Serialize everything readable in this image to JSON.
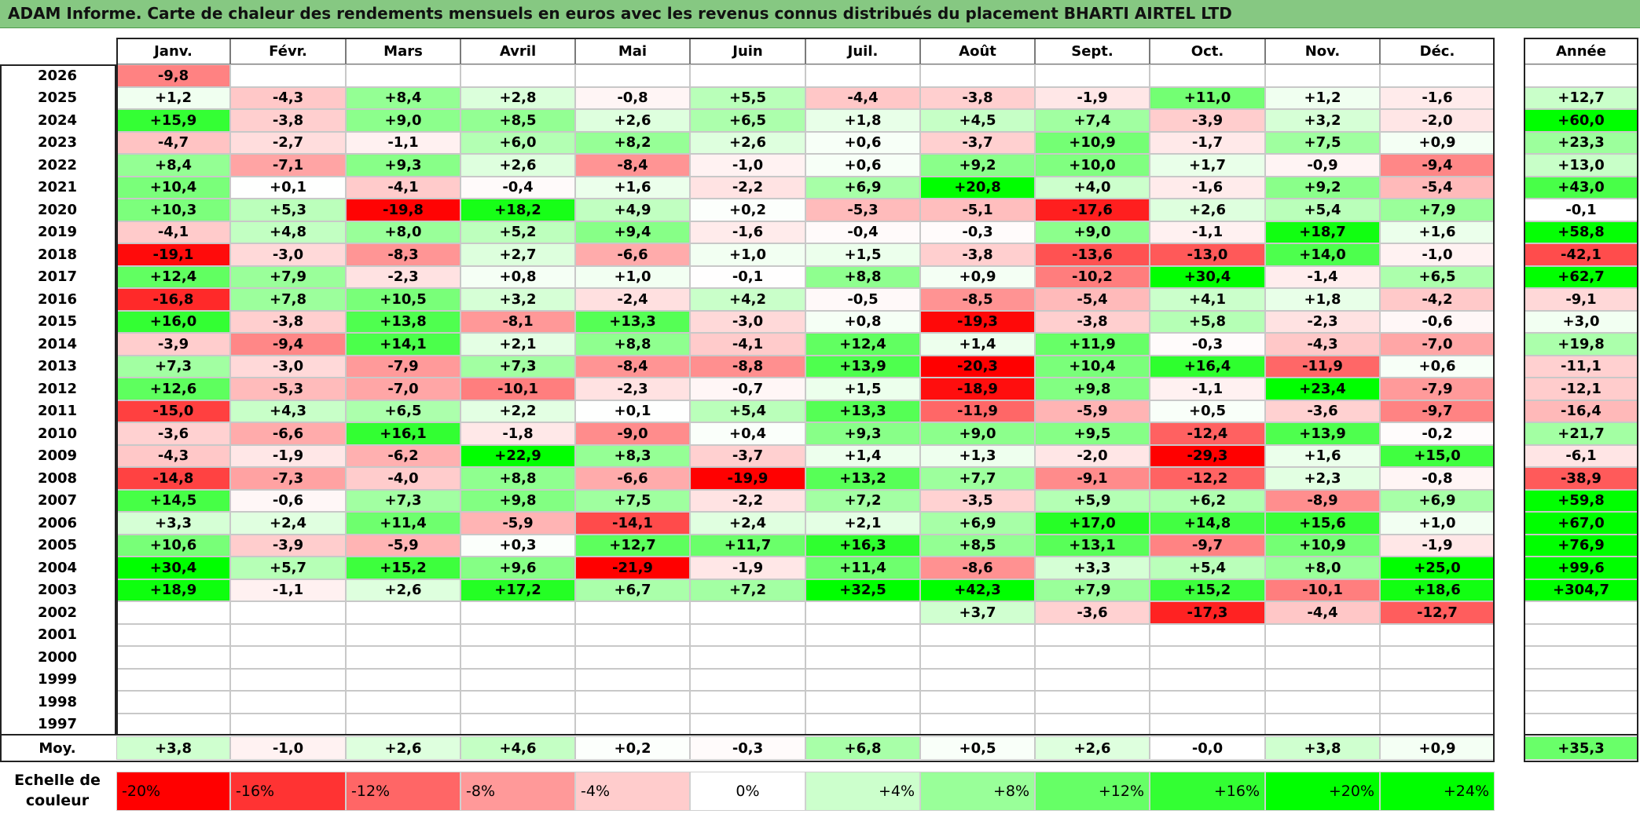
{
  "title": "ADAM Informe. Carte de chaleur des rendements mensuels en euros avec les revenus connus distribués du placement BHARTI AIRTEL LTD",
  "chart_data": {
    "type": "heatmap",
    "months": [
      "Janv.",
      "Févr.",
      "Mars",
      "Avril",
      "Mai",
      "Juin",
      "Juil.",
      "Août",
      "Sept.",
      "Oct.",
      "Nov.",
      "Déc."
    ],
    "year_header": "Année",
    "rows": [
      {
        "year": "2026",
        "months": [
          "-9,8",
          "",
          "",
          "",
          "",
          "",
          "",
          "",
          "",
          "",
          "",
          ""
        ],
        "annual": ""
      },
      {
        "year": "2025",
        "months": [
          "+1,2",
          "-4,3",
          "+8,4",
          "+2,8",
          "-0,8",
          "+5,5",
          "-4,4",
          "-3,8",
          "-1,9",
          "+11,0",
          "+1,2",
          "-1,6"
        ],
        "annual": "+12,7"
      },
      {
        "year": "2024",
        "months": [
          "+15,9",
          "-3,8",
          "+9,0",
          "+8,5",
          "+2,6",
          "+6,5",
          "+1,8",
          "+4,5",
          "+7,4",
          "-3,9",
          "+3,2",
          "-2,0"
        ],
        "annual": "+60,0"
      },
      {
        "year": "2023",
        "months": [
          "-4,7",
          "-2,7",
          "-1,1",
          "+6,0",
          "+8,2",
          "+2,6",
          "+0,6",
          "-3,7",
          "+10,9",
          "-1,7",
          "+7,5",
          "+0,9"
        ],
        "annual": "+23,3"
      },
      {
        "year": "2022",
        "months": [
          "+8,4",
          "-7,1",
          "+9,3",
          "+2,6",
          "-8,4",
          "-1,0",
          "+0,6",
          "+9,2",
          "+10,0",
          "+1,7",
          "-0,9",
          "-9,4"
        ],
        "annual": "+13,0"
      },
      {
        "year": "2021",
        "months": [
          "+10,4",
          "+0,1",
          "-4,1",
          "-0,4",
          "+1,6",
          "-2,2",
          "+6,9",
          "+20,8",
          "+4,0",
          "-1,6",
          "+9,2",
          "-5,4"
        ],
        "annual": "+43,0"
      },
      {
        "year": "2020",
        "months": [
          "+10,3",
          "+5,3",
          "-19,8",
          "+18,2",
          "+4,9",
          "+0,2",
          "-5,3",
          "-5,1",
          "-17,6",
          "+2,6",
          "+5,4",
          "+7,9"
        ],
        "annual": "-0,1"
      },
      {
        "year": "2019",
        "months": [
          "-4,1",
          "+4,8",
          "+8,0",
          "+5,2",
          "+9,4",
          "-1,6",
          "-0,4",
          "-0,3",
          "+9,0",
          "-1,1",
          "+18,7",
          "+1,6"
        ],
        "annual": "+58,8"
      },
      {
        "year": "2018",
        "months": [
          "-19,1",
          "-3,0",
          "-8,3",
          "+2,7",
          "-6,6",
          "+1,0",
          "+1,5",
          "-3,8",
          "-13,6",
          "-13,0",
          "+14,0",
          "-1,0"
        ],
        "annual": "-42,1"
      },
      {
        "year": "2017",
        "months": [
          "+12,4",
          "+7,9",
          "-2,3",
          "+0,8",
          "+1,0",
          "-0,1",
          "+8,8",
          "+0,9",
          "-10,2",
          "+30,4",
          "-1,4",
          "+6,5"
        ],
        "annual": "+62,7"
      },
      {
        "year": "2016",
        "months": [
          "-16,8",
          "+7,8",
          "+10,5",
          "+3,2",
          "-2,4",
          "+4,2",
          "-0,5",
          "-8,5",
          "-5,4",
          "+4,1",
          "+1,8",
          "-4,2"
        ],
        "annual": "-9,1"
      },
      {
        "year": "2015",
        "months": [
          "+16,0",
          "-3,8",
          "+13,8",
          "-8,1",
          "+13,3",
          "-3,0",
          "+0,8",
          "-19,3",
          "-3,8",
          "+5,8",
          "-2,3",
          "-0,6"
        ],
        "annual": "+3,0"
      },
      {
        "year": "2014",
        "months": [
          "-3,9",
          "-9,4",
          "+14,1",
          "+2,1",
          "+8,8",
          "-4,1",
          "+12,4",
          "+1,4",
          "+11,9",
          "-0,3",
          "-4,3",
          "-7,0"
        ],
        "annual": "+19,8"
      },
      {
        "year": "2013",
        "months": [
          "+7,3",
          "-3,0",
          "-7,9",
          "+7,3",
          "-8,4",
          "-8,8",
          "+13,9",
          "-20,3",
          "+10,4",
          "+16,4",
          "-11,9",
          "+0,6"
        ],
        "annual": "-11,1"
      },
      {
        "year": "2012",
        "months": [
          "+12,6",
          "-5,3",
          "-7,0",
          "-10,1",
          "-2,3",
          "-0,7",
          "+1,5",
          "-18,9",
          "+9,8",
          "-1,1",
          "+23,4",
          "-7,9"
        ],
        "annual": "-12,1"
      },
      {
        "year": "2011",
        "months": [
          "-15,0",
          "+4,3",
          "+6,5",
          "+2,2",
          "+0,1",
          "+5,4",
          "+13,3",
          "-11,9",
          "-5,9",
          "+0,5",
          "-3,6",
          "-9,7"
        ],
        "annual": "-16,4"
      },
      {
        "year": "2010",
        "months": [
          "-3,6",
          "-6,6",
          "+16,1",
          "-1,8",
          "-9,0",
          "+0,4",
          "+9,3",
          "+9,0",
          "+9,5",
          "-12,4",
          "+13,9",
          "-0,2"
        ],
        "annual": "+21,7"
      },
      {
        "year": "2009",
        "months": [
          "-4,3",
          "-1,9",
          "-6,2",
          "+22,9",
          "+8,3",
          "-3,7",
          "+1,4",
          "+1,3",
          "-2,0",
          "-29,3",
          "+1,6",
          "+15,0"
        ],
        "annual": "-6,1"
      },
      {
        "year": "2008",
        "months": [
          "-14,8",
          "-7,3",
          "-4,0",
          "+8,8",
          "-6,6",
          "-19,9",
          "+13,2",
          "+7,7",
          "-9,1",
          "-12,2",
          "+2,3",
          "-0,8"
        ],
        "annual": "-38,9"
      },
      {
        "year": "2007",
        "months": [
          "+14,5",
          "-0,6",
          "+7,3",
          "+9,8",
          "+7,5",
          "-2,2",
          "+7,2",
          "-3,5",
          "+5,9",
          "+6,2",
          "-8,9",
          "+6,9"
        ],
        "annual": "+59,8"
      },
      {
        "year": "2006",
        "months": [
          "+3,3",
          "+2,4",
          "+11,4",
          "-5,9",
          "-14,1",
          "+2,4",
          "+2,1",
          "+6,9",
          "+17,0",
          "+14,8",
          "+15,6",
          "+1,0"
        ],
        "annual": "+67,0"
      },
      {
        "year": "2005",
        "months": [
          "+10,6",
          "-3,9",
          "-5,9",
          "+0,3",
          "+12,7",
          "+11,7",
          "+16,3",
          "+8,5",
          "+13,1",
          "-9,7",
          "+10,9",
          "-1,9"
        ],
        "annual": "+76,9"
      },
      {
        "year": "2004",
        "months": [
          "+30,4",
          "+5,7",
          "+15,2",
          "+9,6",
          "-21,9",
          "-1,9",
          "+11,4",
          "-8,6",
          "+3,3",
          "+5,4",
          "+8,0",
          "+25,0"
        ],
        "annual": "+99,6"
      },
      {
        "year": "2003",
        "months": [
          "+18,9",
          "-1,1",
          "+2,6",
          "+17,2",
          "+6,7",
          "+7,2",
          "+32,5",
          "+42,3",
          "+7,9",
          "+15,2",
          "-10,1",
          "+18,6"
        ],
        "annual": "+304,7"
      },
      {
        "year": "2002",
        "months": [
          "",
          "",
          "",
          "",
          "",
          "",
          "",
          "+3,7",
          "-3,6",
          "-17,3",
          "-4,4",
          "-12,7"
        ],
        "annual": ""
      },
      {
        "year": "2001",
        "months": [
          "",
          "",
          "",
          "",
          "",
          "",
          "",
          "",
          "",
          "",
          "",
          ""
        ],
        "annual": ""
      },
      {
        "year": "2000",
        "months": [
          "",
          "",
          "",
          "",
          "",
          "",
          "",
          "",
          "",
          "",
          "",
          ""
        ],
        "annual": ""
      },
      {
        "year": "1999",
        "months": [
          "",
          "",
          "",
          "",
          "",
          "",
          "",
          "",
          "",
          "",
          "",
          ""
        ],
        "annual": ""
      },
      {
        "year": "1998",
        "months": [
          "",
          "",
          "",
          "",
          "",
          "",
          "",
          "",
          "",
          "",
          "",
          ""
        ],
        "annual": ""
      },
      {
        "year": "1997",
        "months": [
          "",
          "",
          "",
          "",
          "",
          "",
          "",
          "",
          "",
          "",
          "",
          ""
        ],
        "annual": ""
      }
    ],
    "average": {
      "label": "Moy.",
      "months": [
        "+3,8",
        "-1,0",
        "+2,6",
        "+4,6",
        "+0,2",
        "-0,3",
        "+6,8",
        "+0,5",
        "+2,6",
        "-0,0",
        "+3,8",
        "+0,9"
      ],
      "annual": "+35,3"
    },
    "scale": {
      "label_line1": "Echelle de",
      "label_line2": "couleur",
      "stops": [
        "-20%",
        "-16%",
        "-12%",
        "-8%",
        "-4%",
        "0%",
        "+4%",
        "+8%",
        "+12%",
        "+16%",
        "+20%",
        "+24%"
      ]
    },
    "colors": {
      "negative_max": "#ff0000",
      "neutral": "#ffffff",
      "positive_max": "#00ff00",
      "title_bar": "#86c882"
    }
  }
}
